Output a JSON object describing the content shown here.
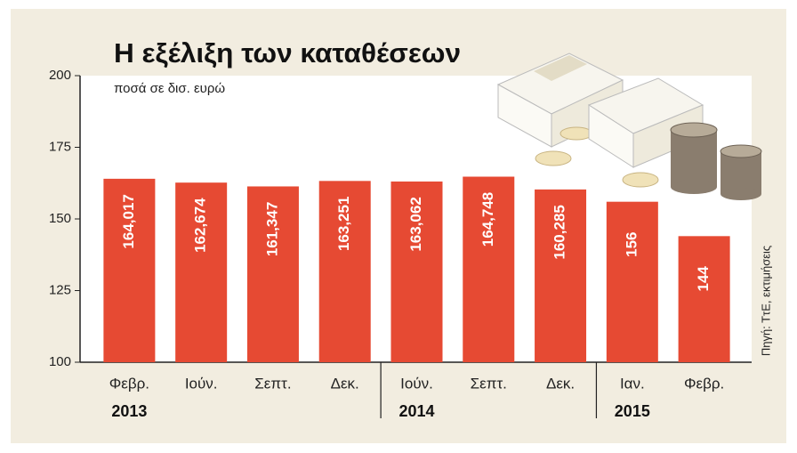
{
  "chart_data": {
    "type": "bar",
    "title": "Η εξέλιξη των καταθέσεων",
    "subtitle": "ποσά σε δισ. ευρώ",
    "source": "Πηγή: ΤτΕ, εκτιμήσεις",
    "categories": [
      "Φεβρ.",
      "Ιούν.",
      "Σεπτ.",
      "Δεκ.",
      "Ιούν.",
      "Σεπτ.",
      "Δεκ.",
      "Ιαν.",
      "Φεβρ."
    ],
    "years": [
      "2013",
      null,
      null,
      null,
      "2014",
      null,
      null,
      "2015",
      null
    ],
    "values": [
      164.017,
      162.674,
      161.347,
      163.251,
      163.062,
      164.748,
      160.285,
      156,
      144
    ],
    "value_labels": [
      "164,017",
      "162,674",
      "161,347",
      "163,251",
      "163,062",
      "164,748",
      "160,285",
      "156",
      "144"
    ],
    "color": "#e64a33",
    "ylim": [
      100,
      200
    ],
    "yticks": [
      100,
      125,
      150,
      175,
      200
    ],
    "grid": false
  }
}
